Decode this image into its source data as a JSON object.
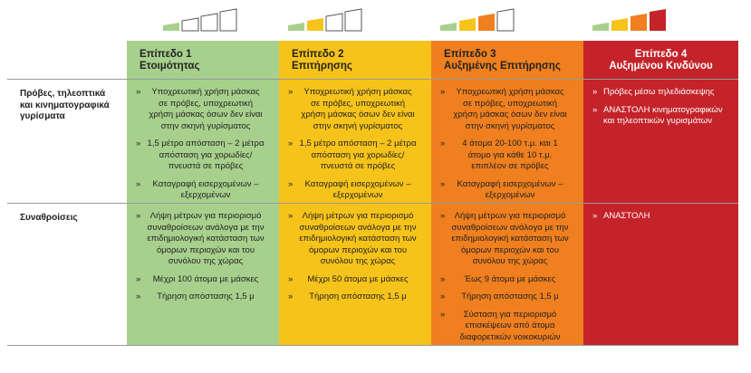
{
  "bullet": "»",
  "table": {
    "columns": [
      {
        "level": "Επίπεδο 1",
        "name": "Ετοιμότητας"
      },
      {
        "level": "Επίπεδο 2",
        "name": "Επιτήρησης"
      },
      {
        "level": "Επίπεδο 3",
        "name": "Αυξημένης Επιτήρησης"
      },
      {
        "level": "Επίπεδο 4",
        "name": "Αυξημένου Κινδύνου"
      }
    ],
    "rows": [
      {
        "label": "Πρόβες, τηλεοπτικά και κινηματογραφικά γυρίσματα",
        "cells": [
          [
            "Υποχρεωτική χρήση μάσκας σε πρόβες, υποχρεωτική χρήση μάσκας όσων δεν είναι στην σκηνή γυρίσματος",
            "1,5 μέτρο απόσταση – 2 μέτρα απόσταση για χορωδίες/πνευστά σε πρόβες",
            "Καταγραφή εισερχομένων – εξερχομένων"
          ],
          [
            "Υποχρεωτική χρήση μάσκας σε πρόβες, υποχρεωτική χρήση μάσκας όσων δεν είναι στην σκηνή γυρίσματος",
            "1,5 μέτρο απόσταση – 2 μέτρα απόσταση για χορωδίες/πνευστά σε πρόβες",
            "Καταγραφή εισερχομένων – εξερχομένων"
          ],
          [
            "Υποχρεωτική χρήση μάσκας σε πρόβες, υποχρεωτική χρήση μάσκας όσων δεν είναι στην σκηνή γυρίσματος",
            "4 άτομα 20-100 τ.μ. και 1 άτομο για κάθε 10 τ.μ. επιπλέον σε πρόβες",
            "Καταγραφή εισερχομένων – εξερχομένων"
          ],
          [
            "Πρόβες μέσω τηλεδιάσκεψης",
            "ΑΝΑΣΤΟΛΗ κινηματογραφικών και τηλεοπτικών γυρισμάτων"
          ]
        ]
      },
      {
        "label": "Συναθροίσεις",
        "cells": [
          [
            "Λήψη μέτρων για περιορισμό συναθροίσεων ανάλογα με την επιδημιολογική κατάσταση των όμορων περιοχών και του συνόλου της χώρας",
            "Μέχρι 100 άτομα με μάσκες",
            "Τήρηση απόστασης 1,5 μ"
          ],
          [
            "Λήψη μέτρων για περιορισμό συναθροίσεων ανάλογα με την επιδημιολογική κατάσταση των όμορων περιοχών και του συνόλου της χώρας",
            "Μέχρι 50 άτομα με μάσκες",
            "Τήρηση απόστασης 1,5 μ"
          ],
          [
            "Λήψη μέτρων για περιορισμό συναθροίσεων ανάλογα με την επιδημιολογική κατάσταση των όμορων περιοχών και του συνόλου της χώρας",
            "Έως 9 άτομα με μάσκες",
            "Τήρηση απόστασης 1,5 μ",
            "Σύσταση για περιορισμό επισκέψεων από άτομα διαφορετικών νοικοκυριών"
          ],
          [
            "ΑΝΑΣΤΟΛΗ"
          ]
        ]
      }
    ]
  }
}
